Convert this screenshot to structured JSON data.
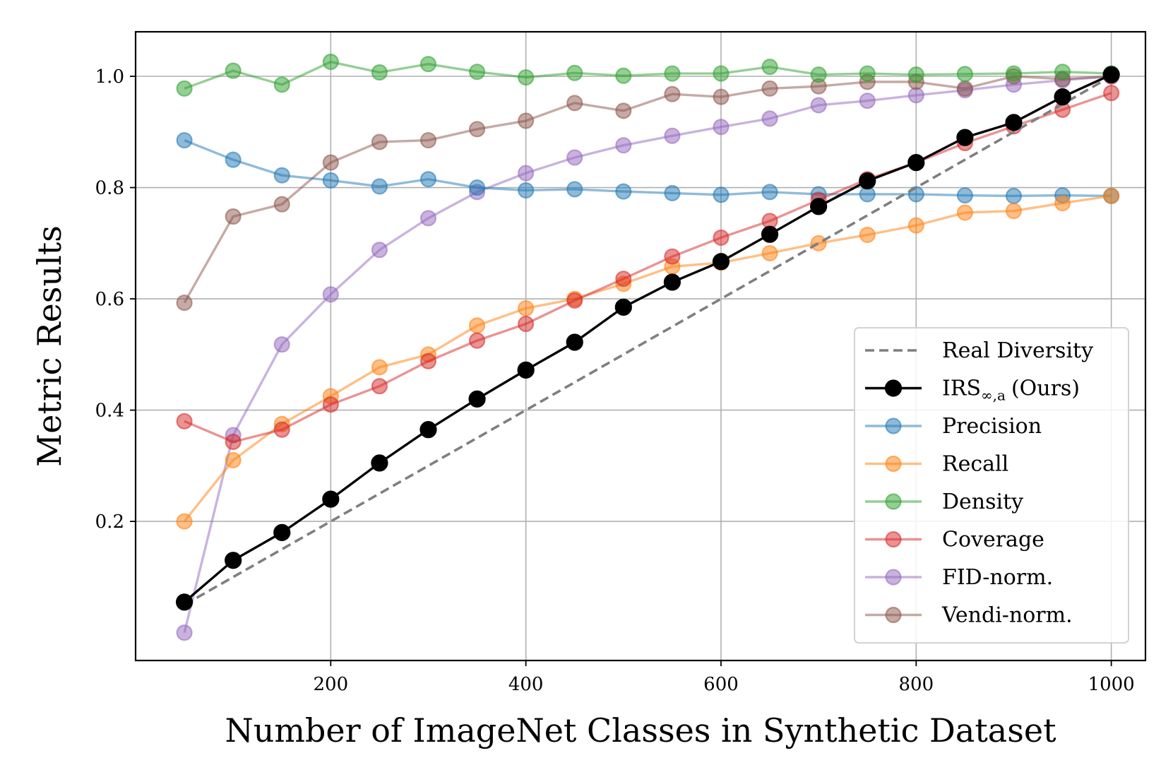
{
  "chart_data": {
    "type": "line",
    "title": "",
    "xlabel": "Number of ImageNet Classes in Synthetic Dataset",
    "ylabel": "Metric Results",
    "xlim": [
      0,
      1035
    ],
    "ylim": [
      -0.05,
      1.08
    ],
    "xticks": [
      200,
      400,
      600,
      800,
      1000
    ],
    "xtick_labels": [
      "200",
      "400",
      "600",
      "800",
      "1000"
    ],
    "yticks": [
      0.2,
      0.4,
      0.6,
      0.8,
      1.0
    ],
    "ytick_labels": [
      "0.2",
      "0.4",
      "0.6",
      "0.8",
      "1.0"
    ],
    "grid": true,
    "legend_position": "bottom-right",
    "x": [
      50,
      100,
      150,
      200,
      250,
      300,
      350,
      400,
      450,
      500,
      550,
      600,
      650,
      700,
      750,
      800,
      850,
      900,
      950,
      1000
    ],
    "series": [
      {
        "name": "Real Diversity",
        "style": "dashed",
        "color": "#7f7f7f",
        "x": [
          50,
          1000
        ],
        "values": [
          0.05,
          1.0
        ]
      },
      {
        "name": "IRS∞,a (Ours)",
        "legend_main": "IRS",
        "legend_sub": "∞,a",
        "legend_suffix": "(Ours)",
        "style": "solid",
        "color": "#000000",
        "values": [
          0.055,
          0.13,
          0.18,
          0.24,
          0.305,
          0.365,
          0.42,
          0.472,
          0.522,
          0.585,
          0.63,
          0.667,
          0.716,
          0.766,
          0.812,
          0.845,
          0.89,
          0.917,
          0.963,
          1.003
        ]
      },
      {
        "name": "Precision",
        "style": "solid",
        "color": "#1f77b4",
        "values": [
          0.885,
          0.85,
          0.822,
          0.813,
          0.802,
          0.815,
          0.8,
          0.795,
          0.797,
          0.793,
          0.79,
          0.787,
          0.792,
          0.788,
          0.788,
          0.788,
          0.786,
          0.785,
          0.786,
          0.785
        ]
      },
      {
        "name": "Recall",
        "style": "solid",
        "color": "#ff7f0e",
        "values": [
          0.2,
          0.31,
          0.375,
          0.425,
          0.477,
          0.5,
          0.552,
          0.583,
          0.6,
          0.627,
          0.658,
          0.665,
          0.682,
          0.7,
          0.715,
          0.732,
          0.755,
          0.758,
          0.772,
          0.785
        ]
      },
      {
        "name": "Density",
        "style": "solid",
        "color": "#2ca02c",
        "values": [
          0.978,
          1.01,
          0.985,
          1.026,
          1.007,
          1.022,
          1.008,
          0.998,
          1.006,
          1.001,
          1.005,
          1.005,
          1.017,
          1.003,
          1.005,
          1.003,
          1.004,
          1.005,
          1.008,
          1.005
        ]
      },
      {
        "name": "Coverage",
        "style": "solid",
        "color": "#d62728",
        "values": [
          0.38,
          0.343,
          0.365,
          0.41,
          0.443,
          0.488,
          0.525,
          0.555,
          0.597,
          0.636,
          0.676,
          0.71,
          0.74,
          0.778,
          0.815,
          0.845,
          0.88,
          0.91,
          0.94,
          0.97
        ]
      },
      {
        "name": "FID-norm.",
        "style": "solid",
        "color": "#9467bd",
        "values": [
          0.0,
          0.355,
          0.518,
          0.608,
          0.688,
          0.745,
          0.792,
          0.826,
          0.854,
          0.876,
          0.893,
          0.909,
          0.924,
          0.948,
          0.956,
          0.966,
          0.975,
          0.985,
          0.993,
          1.0
        ]
      },
      {
        "name": "Vendi-norm.",
        "style": "solid",
        "color": "#8c564b",
        "values": [
          0.593,
          0.748,
          0.77,
          0.845,
          0.882,
          0.885,
          0.905,
          0.92,
          0.952,
          0.938,
          0.968,
          0.963,
          0.978,
          0.982,
          0.99,
          0.99,
          0.978,
          1.0,
          0.995,
          1.0
        ]
      }
    ]
  }
}
